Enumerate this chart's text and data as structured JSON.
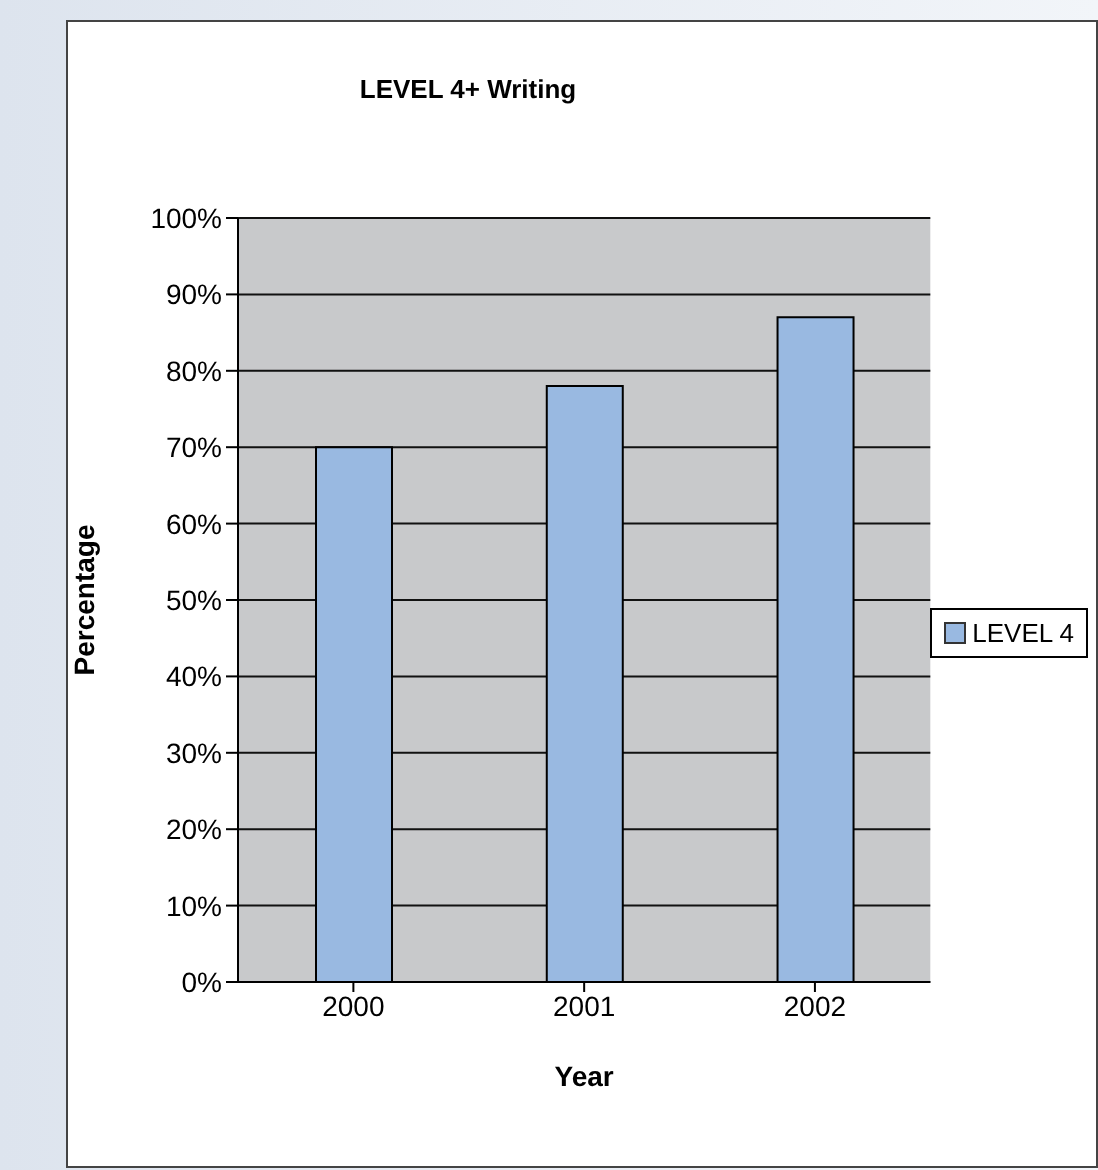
{
  "chart_data": {
    "type": "bar",
    "title": "LEVEL 4+ Writing",
    "xlabel": "Year",
    "ylabel": "Percentage",
    "categories": [
      "2000",
      "2001",
      "2002"
    ],
    "series": [
      {
        "name": "LEVEL 4",
        "color": "#99b9e1",
        "values": [
          70,
          78,
          87
        ]
      }
    ],
    "ylim": [
      0,
      100
    ],
    "yticks": [
      {
        "value": 0,
        "label": "0%"
      },
      {
        "value": 10,
        "label": "10%"
      },
      {
        "value": 20,
        "label": "20%"
      },
      {
        "value": 30,
        "label": "30%"
      },
      {
        "value": 40,
        "label": "40%"
      },
      {
        "value": 50,
        "label": "50%"
      },
      {
        "value": 60,
        "label": "60%"
      },
      {
        "value": 70,
        "label": "70%"
      },
      {
        "value": 80,
        "label": "80%"
      },
      {
        "value": 90,
        "label": "90%"
      },
      {
        "value": 100,
        "label": "100%"
      }
    ],
    "grid": "y",
    "legend": "right"
  }
}
